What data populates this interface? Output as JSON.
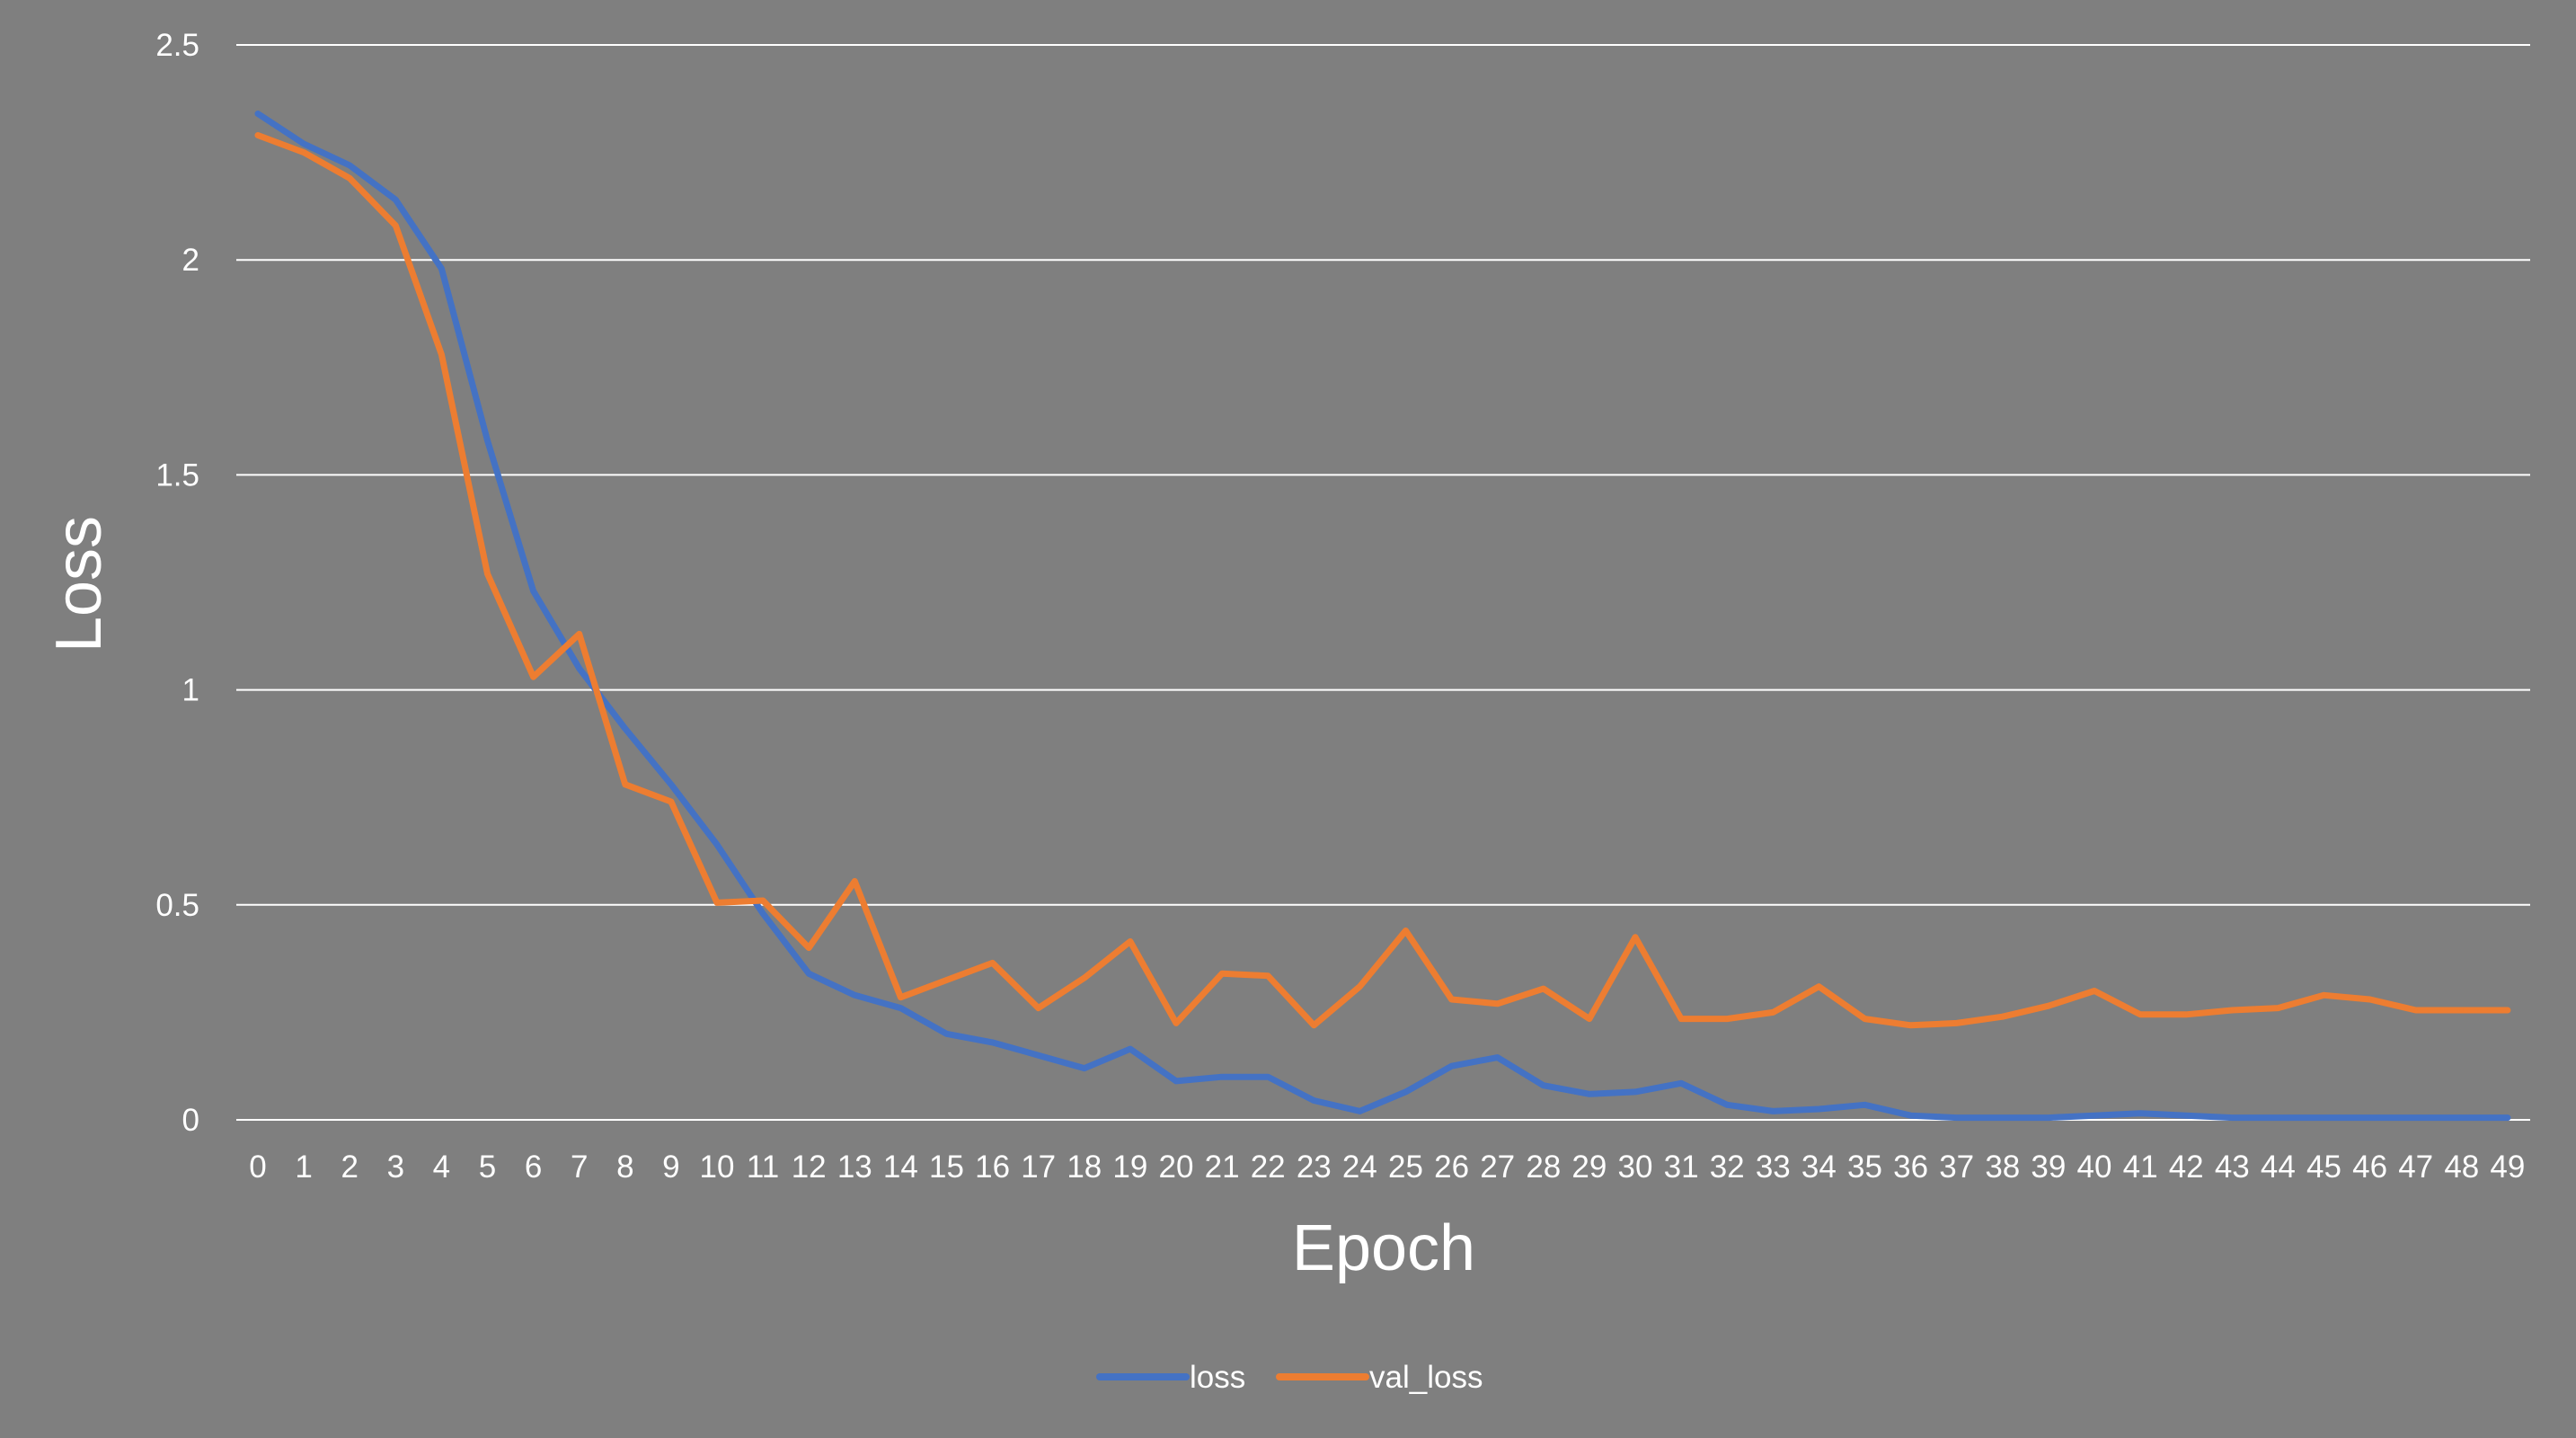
{
  "chart_data": {
    "type": "line",
    "title": "",
    "xlabel": "Epoch",
    "ylabel": "Loss",
    "ylim": [
      0,
      2.5
    ],
    "yticks": [
      "0",
      "0.5",
      "1",
      "1.5",
      "2",
      "2.5"
    ],
    "ytick_values": [
      0,
      0.5,
      1,
      1.5,
      2,
      2.5
    ],
    "x": [
      0,
      1,
      2,
      3,
      4,
      5,
      6,
      7,
      8,
      9,
      10,
      11,
      12,
      13,
      14,
      15,
      16,
      17,
      18,
      19,
      20,
      21,
      22,
      23,
      24,
      25,
      26,
      27,
      28,
      29,
      30,
      31,
      32,
      33,
      34,
      35,
      36,
      37,
      38,
      39,
      40,
      41,
      42,
      43,
      44,
      45,
      46,
      47,
      48,
      49
    ],
    "grid": "horizontal",
    "legend_position": "bottom",
    "background_color": "#7f7f7f",
    "series": [
      {
        "name": "loss",
        "color": "#4472c4",
        "values": [
          2.34,
          2.27,
          2.22,
          2.14,
          1.98,
          1.58,
          1.23,
          1.05,
          0.91,
          0.78,
          0.64,
          0.48,
          0.34,
          0.29,
          0.26,
          0.2,
          0.18,
          0.15,
          0.12,
          0.165,
          0.09,
          0.1,
          0.1,
          0.045,
          0.02,
          0.065,
          0.125,
          0.145,
          0.08,
          0.06,
          0.065,
          0.085,
          0.035,
          0.02,
          0.025,
          0.035,
          0.01,
          0.005,
          0.005,
          0.005,
          0.01,
          0.015,
          0.01,
          0.005,
          0.005,
          0.005,
          0.005,
          0.005,
          0.005,
          0.005
        ]
      },
      {
        "name": "val_loss",
        "color": "#ed7d31",
        "values": [
          2.29,
          2.25,
          2.19,
          2.08,
          1.78,
          1.27,
          1.03,
          1.13,
          0.78,
          0.74,
          0.505,
          0.51,
          0.4,
          0.555,
          0.285,
          0.325,
          0.365,
          0.26,
          0.33,
          0.415,
          0.225,
          0.34,
          0.335,
          0.22,
          0.31,
          0.44,
          0.28,
          0.27,
          0.305,
          0.235,
          0.425,
          0.235,
          0.235,
          0.25,
          0.31,
          0.235,
          0.22,
          0.225,
          0.24,
          0.265,
          0.3,
          0.245,
          0.245,
          0.255,
          0.26,
          0.29,
          0.28,
          0.255,
          0.255,
          0.255
        ]
      }
    ]
  }
}
